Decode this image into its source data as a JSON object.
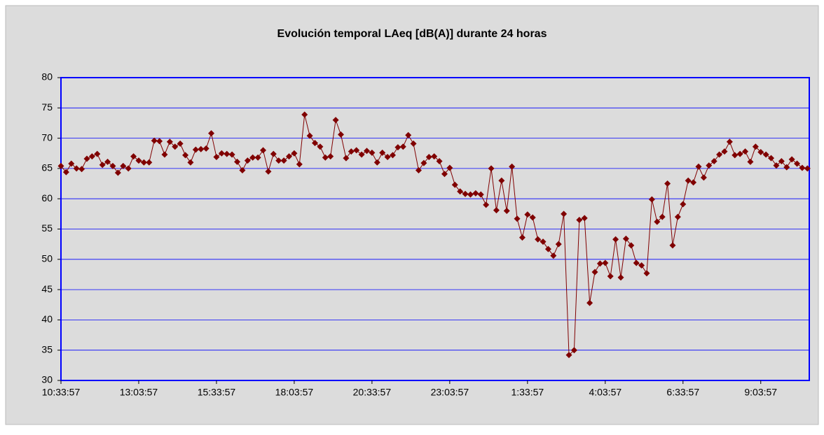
{
  "chart_data": {
    "type": "line",
    "title": "Evolución temporal LAeq [dB(A)]  durante 24 horas",
    "categories": [
      "10:33:57",
      null,
      null,
      null,
      null,
      null,
      null,
      null,
      null,
      null,
      null,
      null,
      null,
      null,
      null,
      "13:03:57",
      null,
      null,
      null,
      null,
      null,
      null,
      null,
      null,
      null,
      null,
      null,
      null,
      null,
      null,
      "15:33:57",
      null,
      null,
      null,
      null,
      null,
      null,
      null,
      null,
      null,
      null,
      null,
      null,
      null,
      null,
      "18:03:57",
      null,
      null,
      null,
      null,
      null,
      null,
      null,
      null,
      null,
      null,
      null,
      null,
      null,
      null,
      "20:33:57",
      null,
      null,
      null,
      null,
      null,
      null,
      null,
      null,
      null,
      null,
      null,
      null,
      null,
      null,
      "23:03:57",
      null,
      null,
      null,
      null,
      null,
      null,
      null,
      null,
      null,
      null,
      null,
      null,
      null,
      null,
      "1:33:57",
      null,
      null,
      null,
      null,
      null,
      null,
      null,
      null,
      null,
      null,
      null,
      null,
      null,
      null,
      "4:03:57",
      null,
      null,
      null,
      null,
      null,
      null,
      null,
      null,
      null,
      null,
      null,
      null,
      null,
      null,
      "6:33:57",
      null,
      null,
      null,
      null,
      null,
      null,
      null,
      null,
      null,
      null,
      null,
      null,
      null,
      null,
      "9:03:57",
      null,
      null,
      null,
      null,
      null,
      null,
      null,
      null,
      null
    ],
    "series": [
      {
        "color": "#800000",
        "values": [
          65.4,
          64.4,
          65.8,
          65.0,
          64.9,
          66.6,
          67.0,
          67.4,
          65.6,
          66.1,
          65.4,
          64.3,
          65.4,
          65.0,
          67.0,
          66.3,
          66.0,
          66.0,
          69.6,
          69.5,
          67.3,
          69.4,
          68.6,
          69.1,
          67.2,
          66.0,
          68.1,
          68.2,
          68.3,
          70.8,
          66.9,
          67.5,
          67.4,
          67.3,
          66.1,
          64.7,
          66.3,
          66.8,
          66.8,
          68.0,
          64.5,
          67.4,
          66.3,
          66.3,
          67.0,
          67.5,
          65.7,
          73.9,
          70.4,
          69.2,
          68.6,
          66.8,
          67.0,
          73.0,
          70.6,
          66.7,
          67.8,
          68.0,
          67.3,
          67.9,
          67.6,
          66.0,
          67.6,
          66.9,
          67.2,
          68.5,
          68.6,
          70.5,
          69.1,
          64.7,
          65.9,
          66.9,
          67.0,
          66.2,
          64.1,
          65.1,
          62.3,
          61.2,
          60.8,
          60.7,
          60.9,
          60.7,
          59.0,
          65.0,
          58.1,
          63.0,
          58.0,
          65.3,
          56.7,
          53.6,
          57.4,
          56.9,
          53.3,
          52.9,
          51.7,
          50.6,
          52.5,
          57.5,
          34.2,
          35.0,
          56.5,
          56.8,
          42.8,
          47.9,
          49.3,
          49.4,
          47.2,
          53.3,
          47.0,
          53.4,
          52.3,
          49.4,
          49.0,
          47.7,
          59.9,
          56.2,
          57.0,
          62.5,
          52.3,
          57.0,
          59.1,
          63.0,
          62.7,
          65.3,
          63.5,
          65.5,
          66.2,
          67.3,
          67.8,
          69.4,
          67.2,
          67.4,
          67.8,
          66.1,
          68.6,
          67.7,
          67.3,
          66.7,
          65.5,
          66.2,
          65.2,
          66.5,
          65.8,
          65.1,
          65.0
        ]
      }
    ],
    "ylim": [
      30,
      80
    ],
    "yticks": [
      30,
      35,
      40,
      45,
      50,
      55,
      60,
      65,
      70,
      75,
      80
    ],
    "grid": true,
    "grid_color": "#0000ff",
    "border_color": "#0000ff"
  }
}
